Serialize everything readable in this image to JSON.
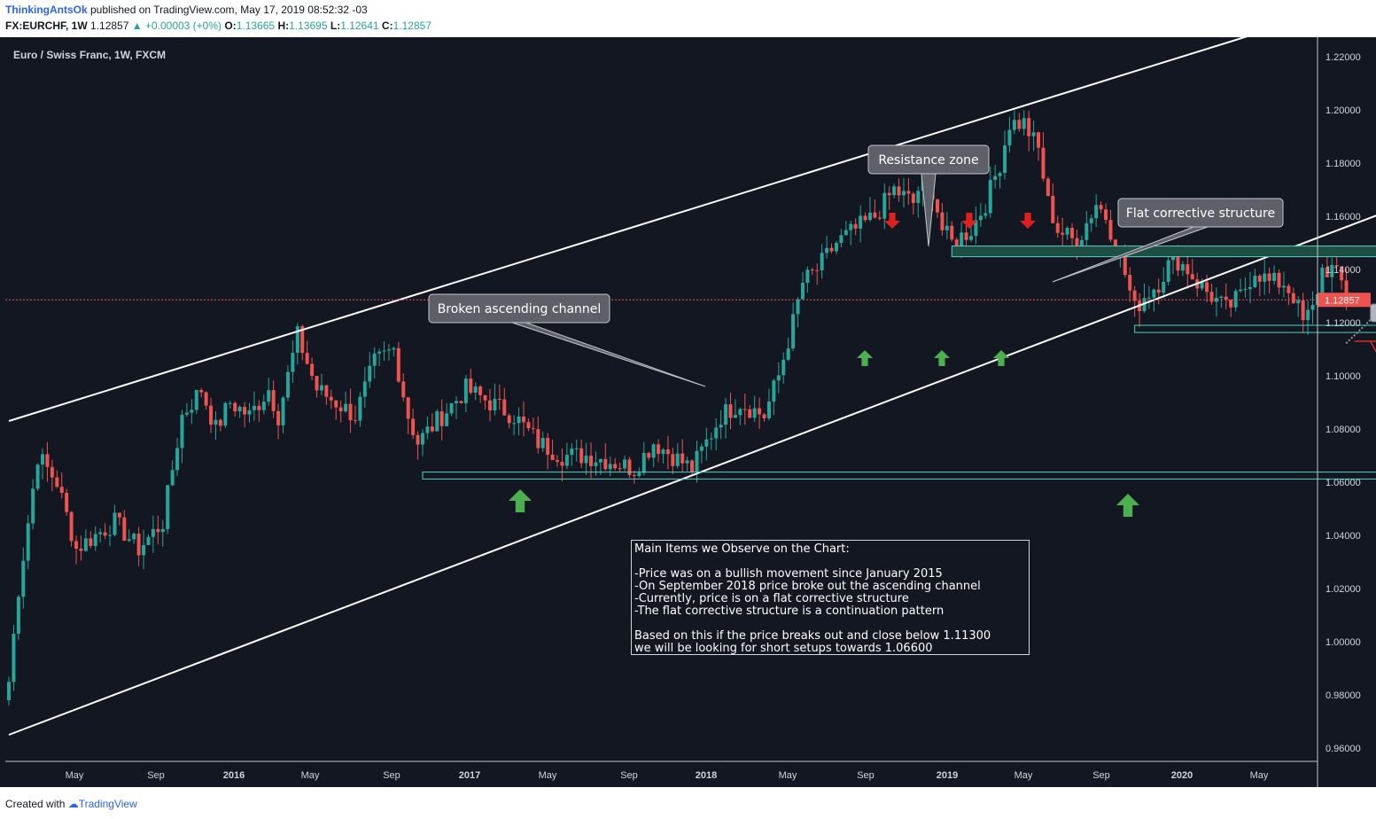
{
  "header": {
    "user": "ThinkingAntsOk",
    "published": " published on TradingView.com, May 17, 2019 08:52:32 -03",
    "symbol": "FX:EURCHF, 1W",
    "last": "1.12857",
    "change": "▲ +0.00003 (+0%)",
    "o_label": "O:",
    "o": "1.13665",
    "h_label": "H:",
    "h": "1.13695",
    "l_label": "L:",
    "l": "1.12641",
    "c_label": "C:",
    "c": "1.12857"
  },
  "chart_data": {
    "type": "candlestick",
    "title": "Euro / Swiss Franc, 1W, FXCM",
    "ylim": [
      0.952,
      1.228
    ],
    "x_axis_labels": [
      "May",
      "Sep",
      "2016",
      "May",
      "Sep",
      "2017",
      "May",
      "Sep",
      "2018",
      "May",
      "Sep",
      "2019",
      "May",
      "Sep",
      "2020",
      "May"
    ],
    "y_axis_labels": [
      "1.22000",
      "1.20000",
      "1.18000",
      "1.16000",
      "1.14000",
      "1.12000",
      "1.10000",
      "1.08000",
      "1.06000",
      "1.04000",
      "1.02000",
      "1.00000",
      "0.98000",
      "0.96000"
    ],
    "last_price_label": "1.12857",
    "last_price": 1.12857,
    "price_path_anchors": [
      [
        0,
        0.985
      ],
      [
        2,
        1.02
      ],
      [
        6,
        1.07
      ],
      [
        10,
        1.06
      ],
      [
        14,
        1.035
      ],
      [
        18,
        1.04
      ],
      [
        22,
        1.045
      ],
      [
        27,
        1.035
      ],
      [
        32,
        1.045
      ],
      [
        36,
        1.085
      ],
      [
        40,
        1.095
      ],
      [
        43,
        1.08
      ],
      [
        46,
        1.09
      ],
      [
        50,
        1.085
      ],
      [
        54,
        1.095
      ],
      [
        56,
        1.085
      ],
      [
        60,
        1.115
      ],
      [
        64,
        1.095
      ],
      [
        68,
        1.09
      ],
      [
        72,
        1.085
      ],
      [
        76,
        1.105
      ],
      [
        80,
        1.11
      ],
      [
        83,
        1.085
      ],
      [
        85,
        1.075
      ],
      [
        90,
        1.085
      ],
      [
        95,
        1.095
      ],
      [
        100,
        1.09
      ],
      [
        105,
        1.085
      ],
      [
        110,
        1.075
      ],
      [
        115,
        1.07
      ],
      [
        120,
        1.07
      ],
      [
        125,
        1.068
      ],
      [
        130,
        1.065
      ],
      [
        134,
        1.075
      ],
      [
        138,
        1.07
      ],
      [
        142,
        1.065
      ],
      [
        148,
        1.085
      ],
      [
        152,
        1.09
      ],
      [
        157,
        1.085
      ],
      [
        160,
        1.1
      ],
      [
        163,
        1.12
      ],
      [
        165,
        1.135
      ],
      [
        168,
        1.14
      ],
      [
        172,
        1.15
      ],
      [
        176,
        1.155
      ],
      [
        180,
        1.16
      ],
      [
        184,
        1.17
      ],
      [
        188,
        1.165
      ],
      [
        190,
        1.175
      ],
      [
        192,
        1.17
      ],
      [
        194,
        1.155
      ],
      [
        196,
        1.15
      ],
      [
        200,
        1.155
      ],
      [
        203,
        1.165
      ],
      [
        206,
        1.18
      ],
      [
        208,
        1.195
      ],
      [
        211,
        1.195
      ],
      [
        214,
        1.185
      ],
      [
        216,
        1.165
      ],
      [
        218,
        1.155
      ],
      [
        222,
        1.15
      ],
      [
        226,
        1.165
      ],
      [
        228,
        1.16
      ],
      [
        231,
        1.145
      ],
      [
        234,
        1.125
      ],
      [
        236,
        1.13
      ],
      [
        239,
        1.135
      ],
      [
        242,
        1.145
      ],
      [
        245,
        1.14
      ],
      [
        247,
        1.135
      ],
      [
        250,
        1.13
      ],
      [
        253,
        1.125
      ],
      [
        256,
        1.13
      ],
      [
        259,
        1.14
      ],
      [
        262,
        1.135
      ],
      [
        265,
        1.135
      ],
      [
        267,
        1.13
      ],
      [
        269,
        1.12
      ],
      [
        271,
        1.125
      ],
      [
        273,
        1.14
      ],
      [
        275,
        1.14
      ],
      [
        277,
        1.135
      ],
      [
        278,
        1.12857
      ]
    ],
    "trendlines": [
      {
        "from": [
          0,
          1.083
        ],
        "to": [
          258,
          1.228
        ]
      },
      {
        "from": [
          0,
          0.965
        ],
        "to": [
          310,
          1.178
        ]
      }
    ],
    "zones": [
      {
        "name": "resistance",
        "x": [
          196,
          309
        ],
        "y": [
          1.1448,
          1.1488
        ]
      },
      {
        "name": "support",
        "x": [
          234,
          309
        ],
        "y": [
          1.1163,
          1.119
        ]
      },
      {
        "name": "target",
        "x": [
          86,
          309
        ],
        "y": [
          1.0612,
          1.0638
        ]
      }
    ],
    "projection": {
      "from_x": 283,
      "from_y": 1.113,
      "to_x": 301,
      "to_y": 1.066
    },
    "price_labels": [
      "1.11300",
      "1.06600"
    ],
    "annotations": [
      "Resistance zone",
      "Flat corrective structure",
      "Broken ascending channel"
    ]
  },
  "note_lines": [
    "Main Items we Observe on the Chart:",
    "",
    "-Price was on a bullish movement since January 2015",
    "-On September 2018 price broke out the ascending channel",
    "-Currently, price is on a flat corrective structure",
    "-The flat corrective structure is a continuation pattern",
    "",
    "Based on this if the price breaks out and close below 1.11300",
    "we will be looking for short setups towards 1.06600"
  ],
  "footer": {
    "created": "Created with ",
    "brand": "TradingView"
  },
  "colors": {
    "bg": "#131722",
    "up": "#26a69a",
    "down": "#ef5350",
    "zone_fill": "#1f4f42",
    "zone_border": "#4fd1c5",
    "arrow_up": "#4caf50",
    "arrow_down": "#e02020"
  }
}
